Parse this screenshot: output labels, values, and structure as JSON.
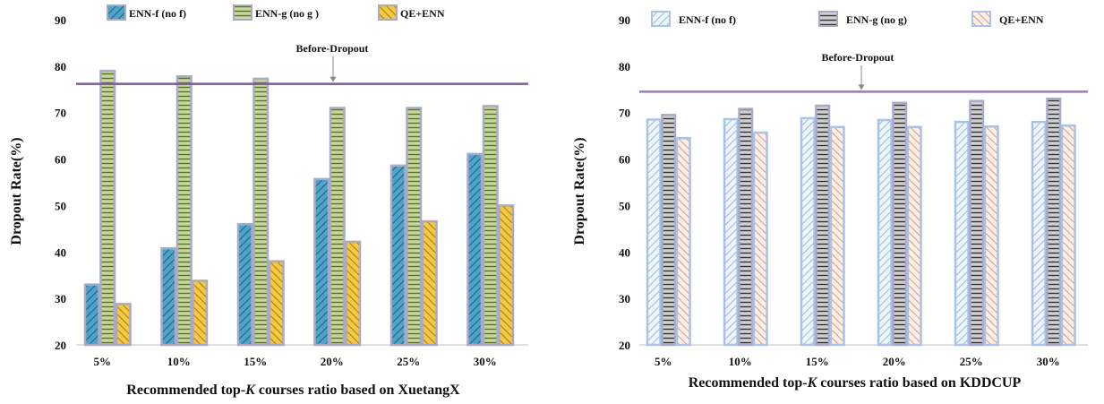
{
  "chart_data": [
    {
      "type": "bar",
      "title": "",
      "xlabel_prefix": "Recommended top-",
      "xlabel_k": "K",
      "xlabel_suffix": " courses ratio based on XuetangX",
      "ylabel": "Dropout Rate(%)",
      "ylim": [
        20,
        90
      ],
      "yticks": [
        20,
        30,
        40,
        50,
        60,
        70,
        80,
        90
      ],
      "categories": [
        "5%",
        "10%",
        "15%",
        "20%",
        "25%",
        "30%"
      ],
      "series": [
        {
          "name": "ENN-f (no f)",
          "values": [
            33.0,
            40.8,
            46.0,
            55.7,
            58.6,
            61.1
          ],
          "fill": "#4fa3c7",
          "stroke": "#a9a9c8",
          "pattern": "diag"
        },
        {
          "name": "ENN-g (no g )",
          "values": [
            79.0,
            77.8,
            77.3,
            71.0,
            71.0,
            71.4
          ],
          "fill": "#c5d79a",
          "stroke": "#a9a9c8",
          "pattern": "horiz"
        },
        {
          "name": "QE+ENN",
          "values": [
            28.8,
            33.8,
            38.0,
            42.2,
            46.6,
            50.0
          ],
          "fill": "#f5c842",
          "stroke": "#a9a9c8",
          "pattern": "backdiag"
        }
      ],
      "reference_line": {
        "label": "Before-Dropout",
        "value": 76.2,
        "color": "#7e5a9b"
      },
      "grid": false,
      "legend_position": "top"
    },
    {
      "type": "bar",
      "title": "",
      "xlabel_prefix": "Recommended top-",
      "xlabel_k": "K",
      "xlabel_suffix": " courses ratio based on KDDCUP",
      "ylabel": "Dropout Rate(%)",
      "ylim": [
        20,
        90
      ],
      "yticks": [
        20,
        30,
        40,
        50,
        60,
        70,
        80,
        90
      ],
      "categories": [
        "5%",
        "10%",
        "15%",
        "20%",
        "25%",
        "30%"
      ],
      "series": [
        {
          "name": "ENN-f (no f)",
          "values": [
            68.5,
            68.6,
            68.8,
            68.4,
            68.0,
            68.0
          ],
          "fill": "#dceaf6",
          "stroke": "#a9c3e8",
          "pattern": "diag-light"
        },
        {
          "name": "ENN-g (no g)",
          "values": [
            69.5,
            70.8,
            71.5,
            72.1,
            72.5,
            73.0
          ],
          "fill": "#cfcfcf",
          "stroke": "#a9a9c8",
          "pattern": "horiz-dark"
        },
        {
          "name": "QE+ENN",
          "values": [
            64.5,
            65.7,
            66.9,
            66.9,
            67.0,
            67.2
          ],
          "fill": "#fbe2d6",
          "stroke": "#a9c3e8",
          "pattern": "backdiag-red"
        }
      ],
      "reference_line": {
        "label": "Before-Dropout",
        "value": 74.5,
        "color": "#9b7bb8"
      },
      "grid": false,
      "legend_position": "top"
    }
  ]
}
